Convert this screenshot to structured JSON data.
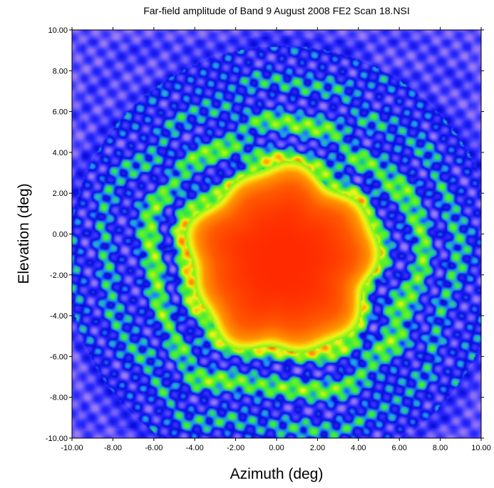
{
  "chart_data": {
    "type": "heatmap",
    "title": "Far-field amplitude of Band 9 August 2008 FE2 Scan 18.NSI",
    "xlabel": "Azimuth (deg)",
    "ylabel": "Elevation (deg)",
    "xlim": [
      -10,
      10
    ],
    "ylim": [
      -10,
      10
    ],
    "x_ticks": [
      -10,
      -8,
      -6,
      -4,
      -2,
      0,
      2,
      4,
      6,
      8,
      10
    ],
    "y_ticks": [
      -10,
      -8,
      -6,
      -4,
      -2,
      0,
      2,
      4,
      6,
      8,
      10
    ],
    "x_tick_labels": [
      "-10.00",
      "-8.00",
      "-6.00",
      "-4.00",
      "-2.00",
      "0.00",
      "2.00",
      "4.00",
      "6.00",
      "8.00",
      "10.00"
    ],
    "y_tick_labels": [
      "-10.00",
      "-8.00",
      "-6.00",
      "-4.00",
      "-2.00",
      "0.00",
      "2.00",
      "4.00",
      "6.00",
      "8.00",
      "10.00"
    ],
    "colormap": [
      "#9b7bf2",
      "#2d2dff",
      "#0a0ad8",
      "#1e8cff",
      "#2ee84a",
      "#7cf21a",
      "#f2f21a",
      "#ffb000",
      "#ff5a00",
      "#ff2a00"
    ],
    "main_beam_center": [
      0.3,
      -1.3
    ],
    "grid": false,
    "legend": "none"
  }
}
